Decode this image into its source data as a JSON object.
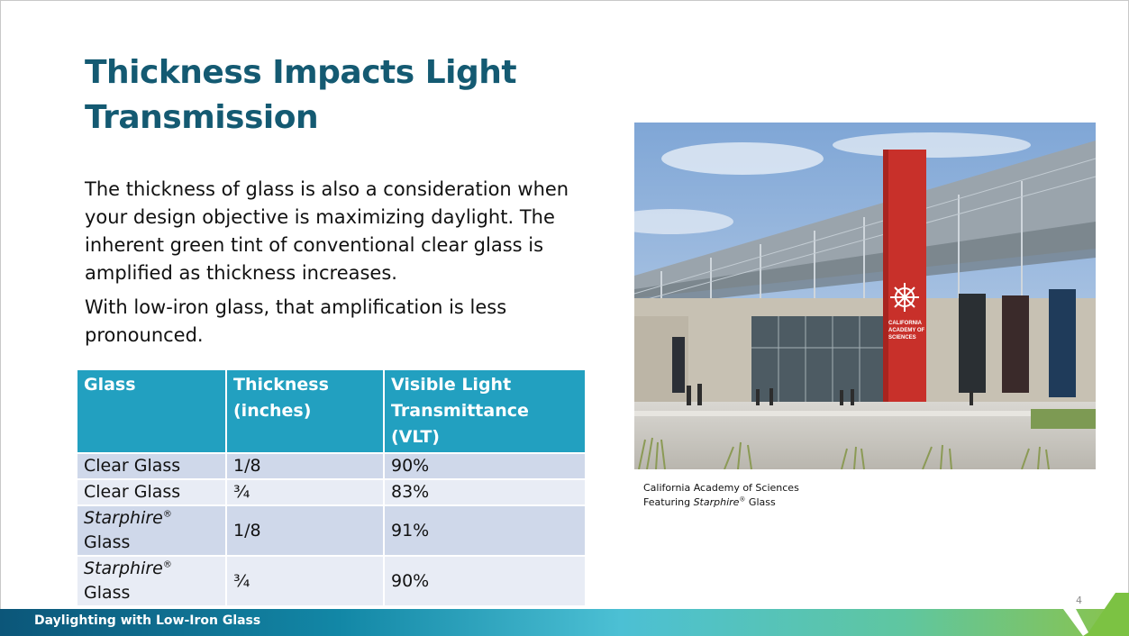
{
  "slide": {
    "title": "Thickness Impacts Light Transmission",
    "paragraphs": [
      "The thickness of glass is also a consideration when your design objective is maximizing daylight. The inherent green tint of conventional clear glass is amplified as thickness increases.",
      "With low-iron glass, that amplification is less pronounced."
    ],
    "page_number": "4",
    "footer_title": "Daylighting with Low-Iron Glass"
  },
  "table": {
    "headers": [
      "Glass",
      "Thickness (inches)",
      "Visible Light Transmittance (VLT)"
    ],
    "rows": [
      {
        "glass": "Clear Glass",
        "thickness": "1/8",
        "vlt": "90%"
      },
      {
        "glass": "Clear Glass",
        "thickness": "¾",
        "vlt": "83%"
      },
      {
        "glass_brand": "Starphire",
        "glass_suffix": "Glass",
        "thickness": "1/8",
        "vlt": "91%"
      },
      {
        "glass_brand": "Starphire",
        "glass_suffix": "Glass",
        "thickness": "¾",
        "vlt": "90%"
      }
    ],
    "registered_mark": "®"
  },
  "photo": {
    "sign_lines": [
      "CALIFORNIA",
      "ACADEMY OF",
      "SCIENCES"
    ],
    "caption_line1": "California Academy of Sciences",
    "caption_prefix": "Featuring",
    "caption_brand": "Starphire",
    "caption_suffix": "Glass"
  },
  "colors": {
    "title": "#145a72",
    "table_header": "#22a0c0",
    "table_row_odd": "#cfd8ea",
    "table_row_even": "#e8ecf5",
    "sign_red": "#c8302a"
  }
}
